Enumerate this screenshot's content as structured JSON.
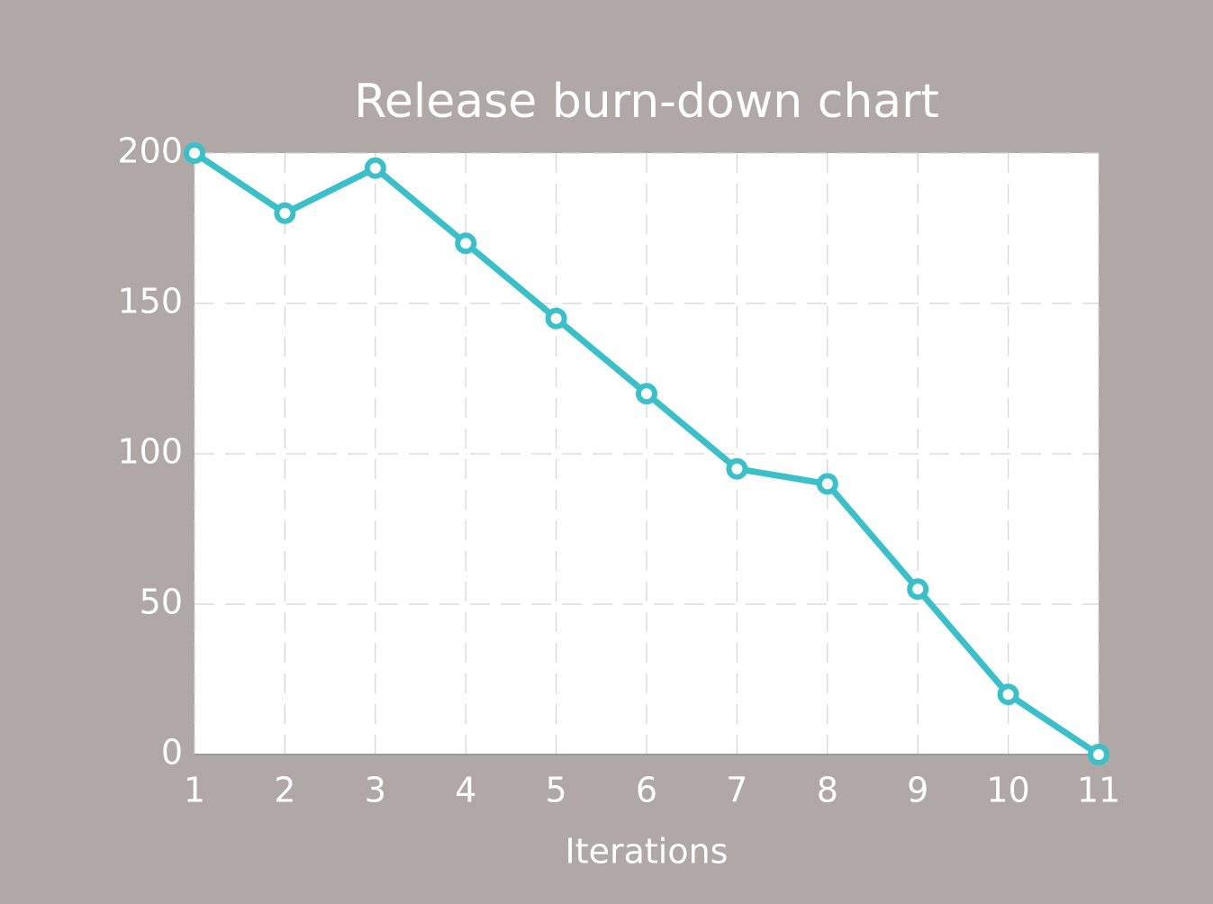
{
  "chart_data": {
    "type": "line",
    "title": "Release burn-down chart",
    "x_label": "Iterations",
    "x": [
      1,
      2,
      3,
      4,
      5,
      6,
      7,
      8,
      9,
      10,
      11
    ],
    "values": [
      200,
      180,
      195,
      170,
      145,
      120,
      95,
      90,
      55,
      20,
      0
    ],
    "color": "#3bbfc9",
    "xlim": [
      1,
      11
    ],
    "xticks": [
      1,
      2,
      3,
      4,
      5,
      6,
      7,
      8,
      9,
      10,
      11
    ],
    "ylim": [
      0,
      200
    ],
    "yticks": [
      0,
      50,
      100,
      150,
      200
    ],
    "grid": true
  }
}
